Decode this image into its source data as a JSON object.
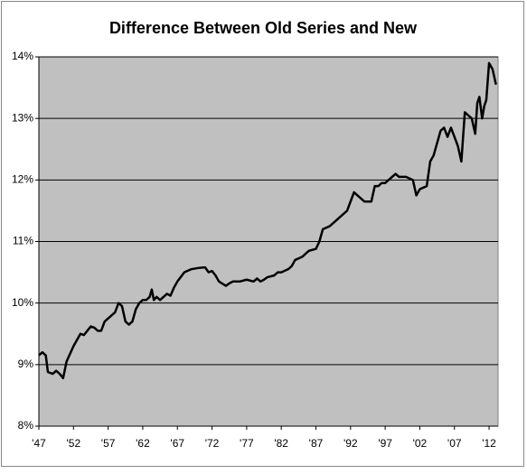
{
  "chart_data": {
    "type": "line",
    "title": "Difference Between Old Series and New",
    "x": [
      1947,
      1947.5,
      1948,
      1948.3,
      1949,
      1949.5,
      1950,
      1950.5,
      1951,
      1952,
      1953,
      1953.5,
      1954,
      1954.5,
      1955,
      1955.5,
      1956,
      1956.5,
      1957,
      1957.5,
      1958,
      1958.5,
      1959,
      1959.5,
      1960,
      1960.5,
      1961,
      1961.5,
      1962,
      1962.5,
      1963,
      1963.3,
      1963.6,
      1964,
      1964.5,
      1965,
      1965.5,
      1966,
      1966.5,
      1967,
      1968,
      1969,
      1970,
      1971,
      1971.5,
      1972,
      1972.5,
      1973,
      1974,
      1974.5,
      1975,
      1976,
      1977,
      1978,
      1978.5,
      1979,
      1979.5,
      1980,
      1981,
      1981.5,
      1982,
      1983,
      1983.5,
      1984,
      1985,
      1986,
      1987,
      1987.5,
      1988,
      1989,
      1990,
      1990.5,
      1991,
      1991.5,
      1992,
      1992.5,
      1993,
      1993.5,
      1994,
      1995,
      1995.5,
      1996,
      1996.5,
      1997,
      1998,
      1998.5,
      1999,
      2000,
      2001,
      2001.5,
      2002,
      2003,
      2003.5,
      2004,
      2004.5,
      2005,
      2005.5,
      2006,
      2006.5,
      2007,
      2007.5,
      2008,
      2008.5,
      2009,
      2009.5,
      2010,
      2010.3,
      2010.6,
      2011,
      2011.3,
      2011.6,
      2012,
      2012.5,
      2013
    ],
    "series": [
      {
        "color": "#000000",
        "values": [
          9.15,
          9.2,
          9.15,
          8.88,
          8.85,
          8.9,
          8.85,
          8.78,
          9.05,
          9.3,
          9.5,
          9.48,
          9.55,
          9.62,
          9.6,
          9.55,
          9.55,
          9.7,
          9.75,
          9.8,
          9.85,
          10.0,
          9.95,
          9.7,
          9.65,
          9.7,
          9.9,
          10.0,
          10.05,
          10.05,
          10.1,
          10.22,
          10.05,
          10.1,
          10.05,
          10.1,
          10.15,
          10.12,
          10.25,
          10.35,
          10.5,
          10.55,
          10.57,
          10.58,
          10.5,
          10.52,
          10.45,
          10.35,
          10.28,
          10.32,
          10.35,
          10.35,
          10.38,
          10.35,
          10.4,
          10.35,
          10.38,
          10.42,
          10.45,
          10.5,
          10.5,
          10.55,
          10.6,
          10.7,
          10.75,
          10.85,
          10.88,
          11.0,
          11.2,
          11.25,
          11.35,
          11.4,
          11.45,
          11.5,
          11.65,
          11.8,
          11.75,
          11.7,
          11.65,
          11.65,
          11.9,
          11.9,
          11.95,
          11.95,
          12.05,
          12.1,
          12.05,
          12.05,
          12.0,
          11.75,
          11.85,
          11.9,
          12.3,
          12.4,
          12.6,
          12.8,
          12.85,
          12.7,
          12.85,
          12.7,
          12.55,
          12.3,
          13.1,
          13.05,
          13.0,
          12.75,
          13.25,
          13.35,
          13.0,
          13.2,
          13.3,
          13.9,
          13.8,
          13.55
        ]
      }
    ],
    "xlim": [
      1947,
      2013.3
    ],
    "xticks": [
      {
        "value": 1947,
        "label": "'47"
      },
      {
        "value": 1952,
        "label": "'52"
      },
      {
        "value": 1957,
        "label": "'57"
      },
      {
        "value": 1962,
        "label": "'62"
      },
      {
        "value": 1967,
        "label": "'67"
      },
      {
        "value": 1972,
        "label": "'72"
      },
      {
        "value": 1977,
        "label": "'77"
      },
      {
        "value": 1982,
        "label": "'82"
      },
      {
        "value": 1987,
        "label": "'87"
      },
      {
        "value": 1992,
        "label": "'92"
      },
      {
        "value": 1997,
        "label": "'97"
      },
      {
        "value": 2002,
        "label": "'02"
      },
      {
        "value": 2007,
        "label": "'07"
      },
      {
        "value": 2012,
        "label": "'12"
      }
    ],
    "ylim": [
      8,
      14
    ],
    "yticks": [
      {
        "value": 8,
        "label": "8%"
      },
      {
        "value": 9,
        "label": "9%"
      },
      {
        "value": 10,
        "label": "10%"
      },
      {
        "value": 11,
        "label": "11%"
      },
      {
        "value": 12,
        "label": "12%"
      },
      {
        "value": 13,
        "label": "13%"
      },
      {
        "value": 14,
        "label": "14%"
      }
    ],
    "grid": true,
    "plot_background": "#c0c0c0"
  }
}
